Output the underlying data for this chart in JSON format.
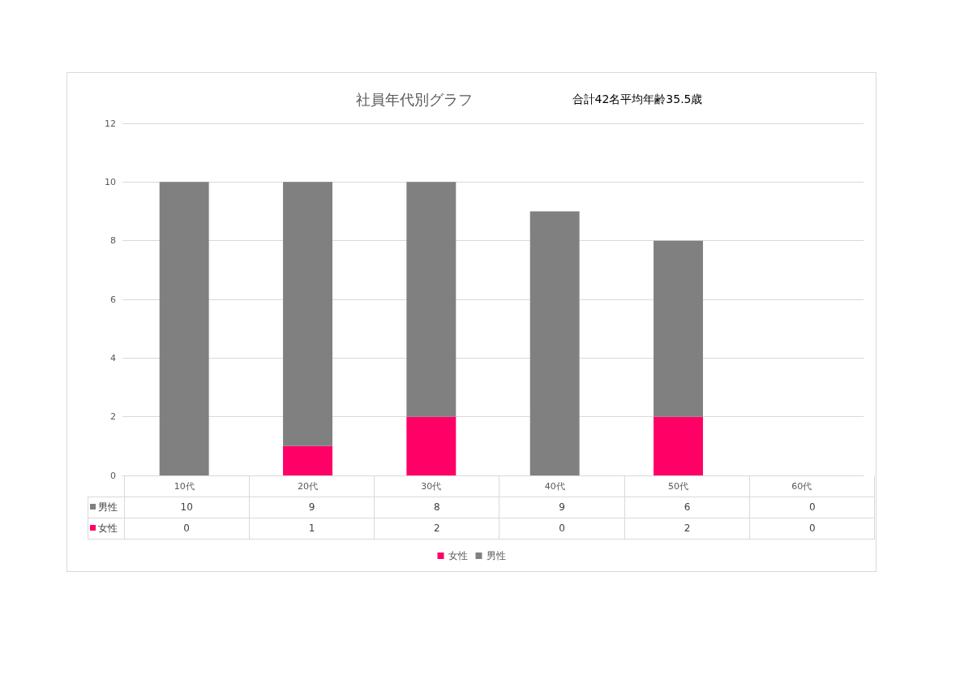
{
  "chart_data": {
    "type": "bar",
    "title": "社員年代別グラフ",
    "subtitle": "合計42名平均年齢35.5歳",
    "categories": [
      "10代",
      "20代",
      "30代",
      "40代",
      "50代",
      "60代"
    ],
    "series": [
      {
        "name": "女性",
        "color": "#ff0066",
        "values": [
          0,
          1,
          2,
          0,
          2,
          0
        ]
      },
      {
        "name": "男性",
        "color": "#808080",
        "values": [
          10,
          9,
          8,
          9,
          6,
          0
        ]
      }
    ],
    "stacked": true,
    "ylim": [
      0,
      12
    ],
    "yticks": [
      0,
      2,
      4,
      6,
      8,
      10,
      12
    ],
    "grid": "y",
    "legend": "bottom",
    "data_labels": true
  }
}
